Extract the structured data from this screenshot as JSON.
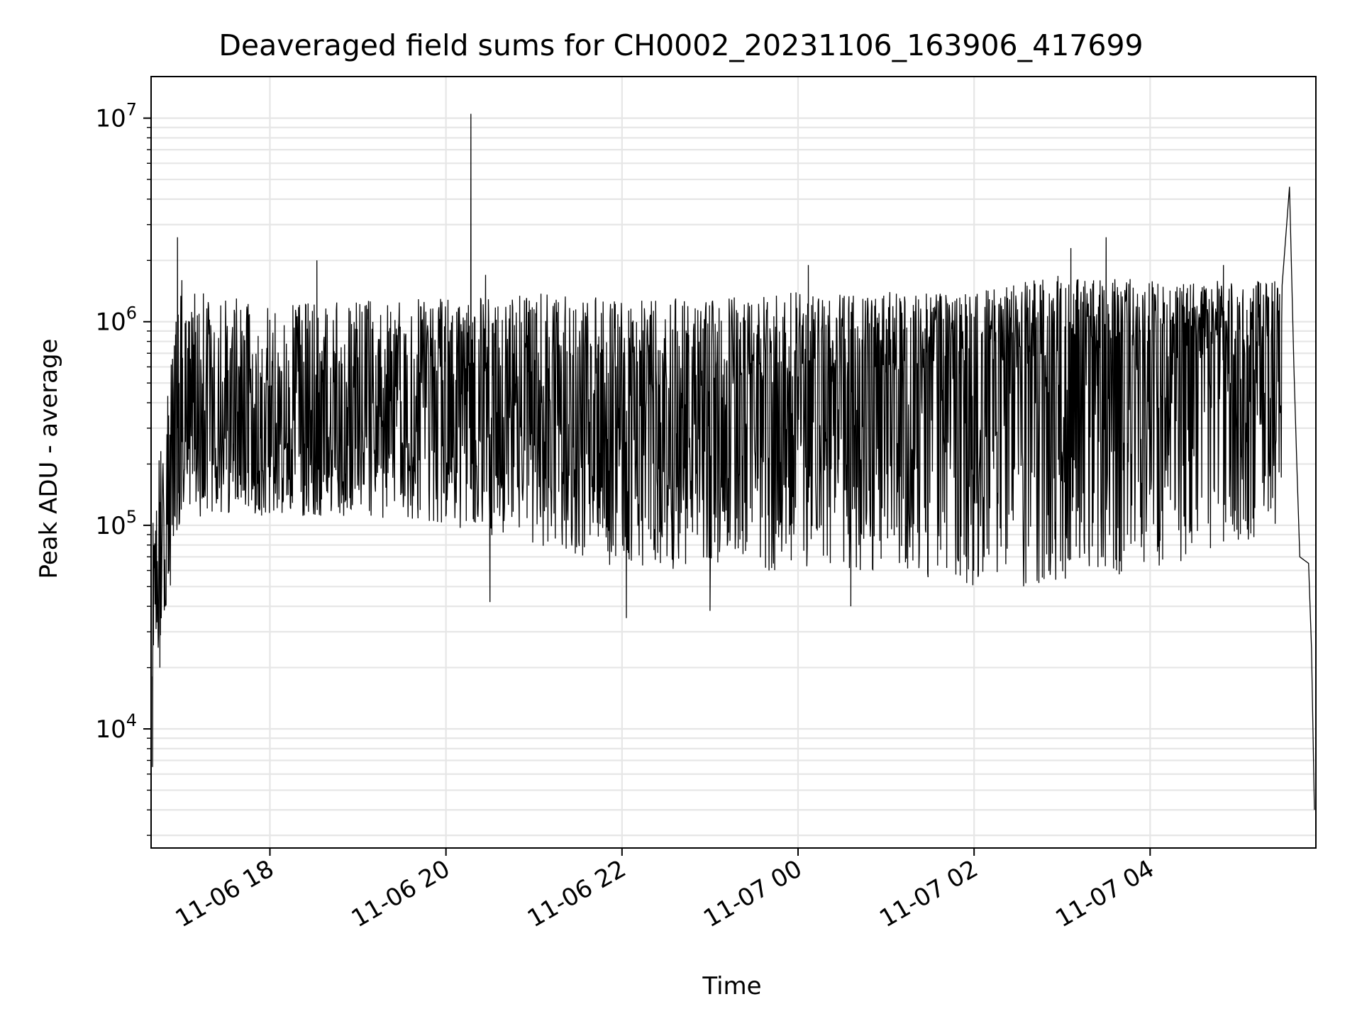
{
  "chart_data": {
    "type": "line",
    "title": "Deaveraged field sums for CH0002_20231106_163906_417699",
    "xlabel": "Time",
    "ylabel": "Peak ADU - average",
    "y_scale": "log",
    "ylim": [
      2600,
      16000000
    ],
    "xlim": [
      "2023-11-06 16:39",
      "2023-11-07 05:53"
    ],
    "grid": true,
    "line_color": "#000000",
    "x_ticks": [
      {
        "value": "2023-11-06 18:00",
        "label": "11-06 18"
      },
      {
        "value": "2023-11-06 20:00",
        "label": "11-06 20"
      },
      {
        "value": "2023-11-06 22:00",
        "label": "11-06 22"
      },
      {
        "value": "2023-11-07 00:00",
        "label": "11-07 00"
      },
      {
        "value": "2023-11-07 02:00",
        "label": "11-07 02"
      },
      {
        "value": "2023-11-07 04:00",
        "label": "11-07 04"
      }
    ],
    "y_ticks": [
      {
        "value": 10000,
        "base": "10",
        "exp": "4"
      },
      {
        "value": 100000,
        "base": "10",
        "exp": "5"
      },
      {
        "value": 1000000,
        "base": "10",
        "exp": "6"
      },
      {
        "value": 10000000,
        "base": "10",
        "exp": "7"
      }
    ],
    "band_envelope": {
      "x": [
        "2023-11-06 16:40",
        "2023-11-06 17:00",
        "2023-11-06 18:00",
        "2023-11-06 19:00",
        "2023-11-06 20:00",
        "2023-11-06 21:00",
        "2023-11-06 22:00",
        "2023-11-06 23:00",
        "2023-11-07 00:00",
        "2023-11-07 01:00",
        "2023-11-07 02:00",
        "2023-11-07 03:00",
        "2023-11-07 04:00",
        "2023-11-07 05:00",
        "2023-11-07 05:30"
      ],
      "upper": [
        130000,
        1500000,
        1200000,
        1300000,
        1300000,
        1400000,
        1300000,
        1300000,
        1400000,
        1400000,
        1400000,
        1700000,
        1600000,
        1600000,
        1600000
      ],
      "median": [
        40000,
        300000,
        270000,
        280000,
        350000,
        350000,
        320000,
        350000,
        450000,
        500000,
        550000,
        600000,
        650000,
        600000,
        650000
      ],
      "lower": [
        15000,
        110000,
        110000,
        110000,
        100000,
        80000,
        60000,
        60000,
        60000,
        60000,
        50000,
        50000,
        60000,
        80000,
        100000
      ]
    },
    "highlights": [
      {
        "x": "2023-11-06 16:40",
        "y": 6500
      },
      {
        "x": "2023-11-06 16:41",
        "y": 80000
      },
      {
        "x": "2023-11-06 16:45",
        "y": 20000
      },
      {
        "x": "2023-11-06 16:50",
        "y": 140000
      },
      {
        "x": "2023-11-06 16:56",
        "y": 1000000
      },
      {
        "x": "2023-11-06 16:57",
        "y": 2600000
      },
      {
        "x": "2023-11-06 16:58",
        "y": 500000
      },
      {
        "x": "2023-11-06 17:00",
        "y": 1600000
      },
      {
        "x": "2023-11-06 18:32",
        "y": 2000000
      },
      {
        "x": "2023-11-06 20:16",
        "y": 300000
      },
      {
        "x": "2023-11-06 20:17",
        "y": 10500000
      },
      {
        "x": "2023-11-06 20:18",
        "y": 200000
      },
      {
        "x": "2023-11-06 20:27",
        "y": 1700000
      },
      {
        "x": "2023-11-06 20:30",
        "y": 42000
      },
      {
        "x": "2023-11-06 22:03",
        "y": 35000
      },
      {
        "x": "2023-11-06 23:00",
        "y": 38000
      },
      {
        "x": "2023-11-07 00:07",
        "y": 1900000
      },
      {
        "x": "2023-11-07 00:36",
        "y": 40000
      },
      {
        "x": "2023-11-07 03:06",
        "y": 2300000
      },
      {
        "x": "2023-11-07 03:30",
        "y": 2600000
      },
      {
        "x": "2023-11-07 04:50",
        "y": 1900000
      },
      {
        "x": "2023-11-07 05:35",
        "y": 4600000
      },
      {
        "x": "2023-11-07 05:38",
        "y": 600000
      },
      {
        "x": "2023-11-07 05:40",
        "y": 200000
      },
      {
        "x": "2023-11-07 05:42",
        "y": 70000
      },
      {
        "x": "2023-11-07 05:48",
        "y": 65000
      },
      {
        "x": "2023-11-07 05:50",
        "y": 25000
      },
      {
        "x": "2023-11-07 05:52",
        "y": 4000
      }
    ]
  }
}
